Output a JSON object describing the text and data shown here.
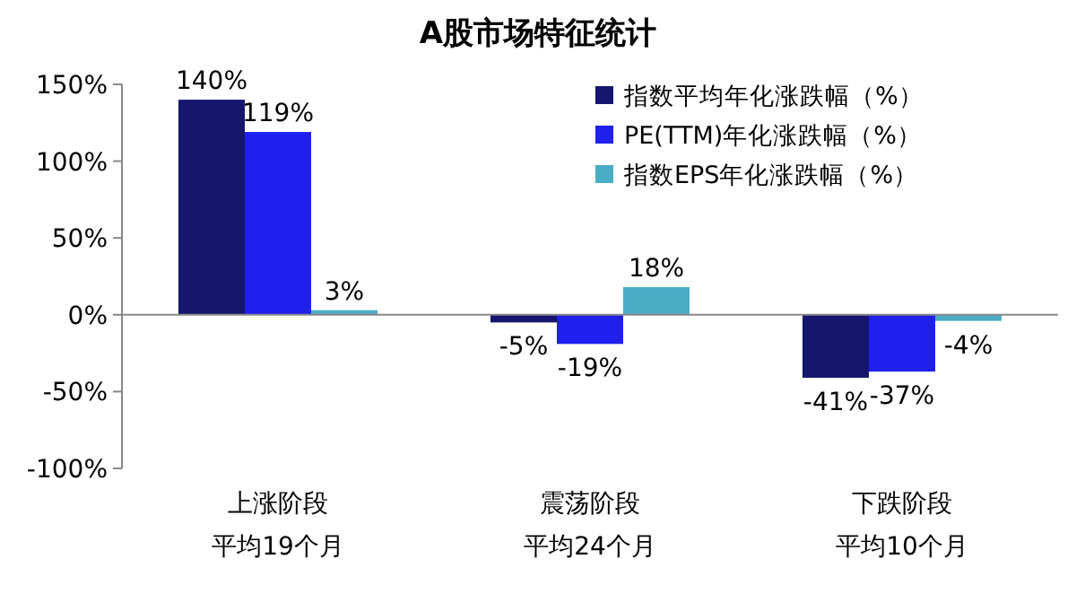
{
  "chart_data": {
    "type": "bar",
    "title": "A股市场特征统计",
    "categories": [
      "上涨阶段平均19个月",
      "震荡阶段平均24个月",
      "下跌阶段平均10个月"
    ],
    "series": [
      {
        "name": "指数平均年化涨跌幅（%）",
        "color": "#16166e",
        "values": [
          140,
          -5,
          -41
        ],
        "value_labels": [
          "140%",
          "-5%",
          "-41%"
        ]
      },
      {
        "name": "PE(TTM)年化涨跌幅（%）",
        "color": "#1f1ff0",
        "values": [
          119,
          -19,
          -37
        ],
        "value_labels": [
          "119%",
          "-19%",
          "-37%"
        ]
      },
      {
        "name": "指数EPS年化涨跌幅（%）",
        "color": "#4bacc6",
        "values": [
          3,
          18,
          -4
        ],
        "value_labels": [
          "3%",
          "18%",
          "-4%"
        ]
      }
    ],
    "ylim": [
      -100,
      150
    ],
    "yticks": [
      {
        "value": -100,
        "label": "-100%"
      },
      {
        "value": -50,
        "label": "-50%"
      },
      {
        "value": 0,
        "label": "0%"
      },
      {
        "value": 50,
        "label": "50%"
      },
      {
        "value": 100,
        "label": "100%"
      },
      {
        "value": 150,
        "label": "150%"
      }
    ],
    "legend": "top right"
  }
}
